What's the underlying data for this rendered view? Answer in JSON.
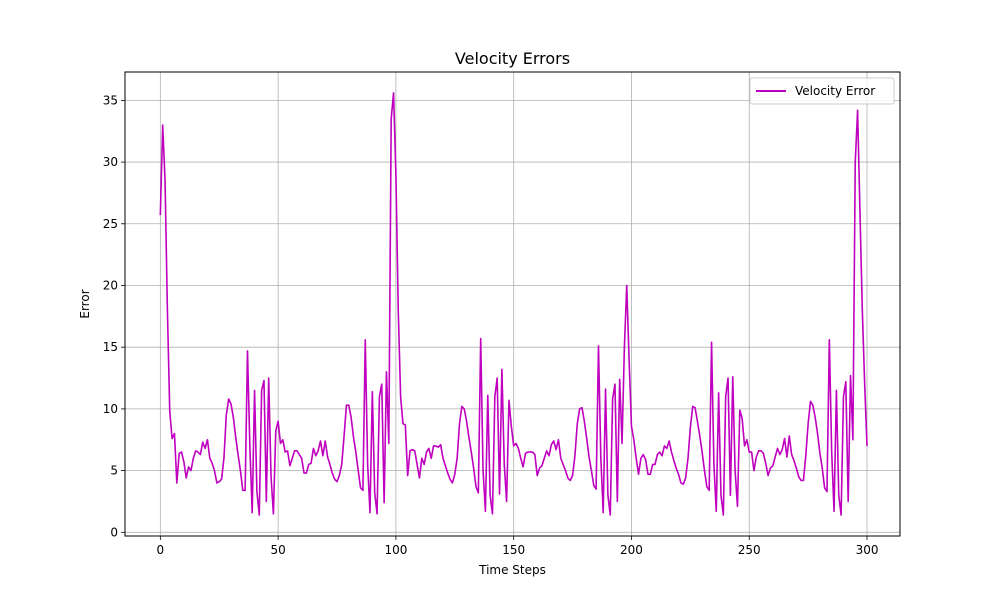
{
  "chart_data": {
    "type": "line",
    "title": "Velocity Errors",
    "xlabel": "Time Steps",
    "ylabel": "Error",
    "xlim": [
      -15,
      314
    ],
    "ylim": [
      -0.3,
      37.3
    ],
    "x_ticks": [
      0,
      50,
      100,
      150,
      200,
      250,
      300
    ],
    "y_ticks": [
      0,
      5,
      10,
      15,
      20,
      25,
      30,
      35
    ],
    "grid": true,
    "legend_position": "top-right",
    "series": [
      {
        "name": "Velocity Error",
        "color": "#bf00bf",
        "x_start": 0,
        "x_step": 1,
        "values": [
          25.7,
          33.0,
          28.5,
          18.0,
          9.8,
          7.6,
          8.0,
          4.0,
          6.4,
          6.5,
          5.7,
          4.4,
          5.3,
          5.0,
          6.0,
          6.6,
          6.5,
          6.3,
          7.3,
          6.8,
          7.5,
          6.0,
          5.6,
          5.0,
          4.0,
          4.1,
          4.3,
          6.0,
          9.5,
          10.8,
          10.4,
          9.3,
          7.7,
          6.3,
          5.0,
          3.4,
          3.4,
          14.7,
          7.0,
          1.6,
          11.5,
          3.3,
          1.4,
          11.5,
          12.3,
          2.5,
          12.5,
          4.5,
          1.5,
          8.2,
          9.0,
          7.2,
          7.5,
          6.5,
          6.6,
          5.4,
          6.0,
          6.6,
          6.6,
          6.3,
          6.0,
          4.8,
          4.8,
          5.5,
          5.6,
          6.8,
          6.2,
          6.6,
          7.4,
          6.2,
          7.4,
          6.1,
          5.5,
          4.8,
          4.3,
          4.1,
          4.6,
          5.5,
          7.8,
          10.3,
          10.3,
          9.3,
          7.7,
          6.5,
          5.0,
          3.6,
          3.4,
          15.6,
          5.5,
          1.6,
          11.4,
          3.2,
          1.5,
          11.0,
          12.0,
          2.4,
          13.0,
          7.2,
          33.5,
          35.6,
          29.0,
          18.0,
          11.0,
          8.8,
          8.7,
          4.6,
          6.6,
          6.7,
          6.6,
          5.5,
          4.4,
          6.0,
          5.5,
          6.5,
          6.8,
          6.0,
          7.0,
          7.0,
          6.9,
          7.1,
          6.0,
          5.4,
          4.8,
          4.3,
          4.0,
          4.7,
          6.0,
          8.8,
          10.2,
          10.0,
          9.0,
          7.7,
          6.5,
          5.2,
          3.7,
          3.2,
          15.7,
          5.0,
          1.7,
          11.1,
          3.0,
          1.5,
          11.0,
          12.5,
          3.1,
          13.2,
          5.5,
          2.5,
          10.7,
          8.6,
          7.0,
          7.2,
          6.8,
          6.0,
          5.3,
          6.4,
          6.5,
          6.5,
          6.5,
          6.3,
          4.6,
          5.2,
          5.4,
          6.0,
          6.6,
          6.2,
          7.1,
          7.4,
          6.7,
          7.5,
          6.0,
          5.5,
          5.0,
          4.4,
          4.2,
          4.6,
          6.2,
          8.8,
          10.0,
          10.1,
          9.0,
          7.6,
          6.1,
          5.0,
          3.8,
          3.5,
          15.1,
          6.0,
          1.6,
          11.6,
          3.0,
          1.4,
          10.8,
          12.0,
          2.5,
          12.4,
          7.2,
          15.0,
          20.0,
          14.0,
          8.6,
          7.5,
          6.0,
          4.7,
          6.0,
          6.3,
          5.9,
          4.7,
          4.7,
          5.5,
          5.5,
          6.3,
          6.5,
          6.2,
          7.0,
          6.8,
          7.4,
          6.5,
          5.8,
          5.2,
          4.7,
          4.0,
          3.9,
          4.4,
          6.0,
          8.5,
          10.2,
          10.1,
          9.0,
          7.8,
          6.5,
          5.0,
          3.7,
          3.4,
          15.4,
          5.5,
          1.7,
          11.3,
          3.0,
          1.4,
          11.0,
          12.5,
          3.0,
          12.6,
          5.0,
          2.1,
          9.9,
          9.2,
          7.0,
          7.5,
          6.5,
          6.5,
          5.0,
          6.1,
          6.6,
          6.6,
          6.4,
          5.6,
          4.6,
          5.2,
          5.4,
          6.1,
          6.8,
          6.3,
          6.7,
          7.6,
          6.1,
          7.8,
          6.3,
          5.8,
          5.2,
          4.5,
          4.2,
          4.2,
          6.2,
          8.8,
          10.6,
          10.3,
          9.3,
          8.0,
          6.4,
          5.2,
          3.6,
          3.3,
          15.6,
          6.5,
          1.7,
          11.5,
          3.0,
          1.4,
          11.0,
          12.2,
          2.5,
          12.7,
          7.5,
          30.0,
          34.2,
          26.0,
          18.0,
          12.0,
          7.0
        ]
      }
    ]
  }
}
